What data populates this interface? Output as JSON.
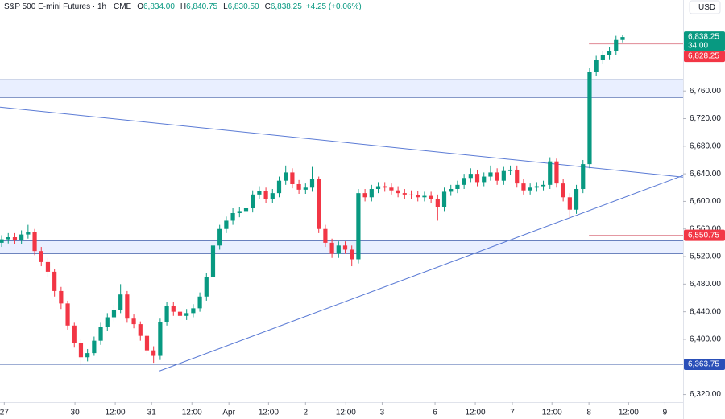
{
  "chart_data": {
    "type": "candlestick",
    "title": "S&P 500 E-mini Futures · 1h · CME",
    "ohlc": [
      {
        "label": "O",
        "value": "6,834.00"
      },
      {
        "label": "H",
        "value": "6,840.75"
      },
      {
        "label": "L",
        "value": "6,830.50"
      },
      {
        "label": "C",
        "value": "6,838.25"
      }
    ],
    "change": "+4.25 (+0.06%)",
    "currency": "USD",
    "countdown": "34:00",
    "colors": {
      "up": "#089981",
      "down": "#f23645"
    },
    "open": [
      6540,
      6545,
      6548,
      6544,
      6552,
      6556,
      6528,
      6512,
      6498,
      6470,
      6452,
      6420,
      6395,
      6374,
      6380,
      6398,
      6418,
      6432,
      6443,
      6465,
      6430,
      6422,
      6405,
      6384,
      6376,
      6425,
      6448,
      6440,
      6434,
      6438,
      6445,
      6462,
      6490,
      6536,
      6560,
      6572,
      6583,
      6586,
      6590,
      6610,
      6615,
      6604,
      6612,
      6630,
      6642,
      6625,
      6617,
      6620,
      6632,
      6560,
      6540,
      6524,
      6536,
      6530,
      6516,
      6612,
      6606,
      6618,
      6622,
      6620,
      6616,
      6612,
      6610,
      6609,
      6606,
      6608,
      6604,
      6592,
      6614,
      6618,
      6624,
      6634,
      6640,
      6628,
      6636,
      6642,
      6630,
      6644,
      6646,
      6626,
      6616,
      6620,
      6622,
      6624,
      6658,
      6626,
      6606,
      6588,
      6618,
      6654,
      6788,
      6805,
      6812,
      6818,
      6834
    ],
    "high": [
      6551,
      6554,
      6554,
      6558,
      6566,
      6560,
      6534,
      6518,
      6502,
      6476,
      6456,
      6424,
      6400,
      6386,
      6404,
      6424,
      6438,
      6450,
      6480,
      6470,
      6436,
      6426,
      6410,
      6390,
      6430,
      6454,
      6454,
      6446,
      6444,
      6451,
      6468,
      6496,
      6542,
      6566,
      6578,
      6590,
      6592,
      6596,
      6616,
      6622,
      6620,
      6618,
      6636,
      6652,
      6648,
      6631,
      6626,
      6650,
      6636,
      6566,
      6546,
      6542,
      6542,
      6536,
      6618,
      6618,
      6624,
      6628,
      6628,
      6626,
      6622,
      6618,
      6616,
      6615,
      6614,
      6614,
      6610,
      6620,
      6624,
      6630,
      6640,
      6648,
      6646,
      6642,
      6652,
      6648,
      6650,
      6652,
      6652,
      6632,
      6626,
      6628,
      6630,
      6664,
      6662,
      6632,
      6612,
      6624,
      6660,
      6794,
      6811,
      6818,
      6824,
      6840,
      6840.75
    ],
    "low": [
      6534,
      6539,
      6538,
      6538,
      6546,
      6522,
      6506,
      6490,
      6462,
      6444,
      6414,
      6388,
      6362,
      6368,
      6376,
      6392,
      6412,
      6426,
      6438,
      6424,
      6416,
      6398,
      6378,
      6366,
      6370,
      6420,
      6434,
      6428,
      6428,
      6432,
      6440,
      6456,
      6484,
      6530,
      6554,
      6566,
      6577,
      6580,
      6584,
      6604,
      6598,
      6598,
      6606,
      6624,
      6619,
      6611,
      6611,
      6614,
      6554,
      6534,
      6518,
      6518,
      6524,
      6506,
      6510,
      6600,
      6600,
      6612,
      6614,
      6610,
      6606,
      6604,
      6603,
      6600,
      6600,
      6598,
      6572,
      6586,
      6608,
      6612,
      6618,
      6628,
      6622,
      6622,
      6630,
      6624,
      6624,
      6638,
      6620,
      6610,
      6610,
      6614,
      6616,
      6618,
      6620,
      6600,
      6576,
      6582,
      6612,
      6648,
      6782,
      6799,
      6806,
      6812,
      6830.5
    ],
    "close": [
      6545,
      6548,
      6544,
      6552,
      6556,
      6528,
      6512,
      6498,
      6470,
      6452,
      6420,
      6395,
      6374,
      6380,
      6398,
      6418,
      6432,
      6443,
      6465,
      6430,
      6422,
      6405,
      6384,
      6376,
      6425,
      6448,
      6440,
      6434,
      6438,
      6445,
      6462,
      6490,
      6536,
      6560,
      6572,
      6583,
      6586,
      6590,
      6610,
      6615,
      6604,
      6612,
      6630,
      6642,
      6625,
      6617,
      6620,
      6632,
      6560,
      6540,
      6524,
      6536,
      6530,
      6516,
      6612,
      6606,
      6618,
      6622,
      6620,
      6616,
      6612,
      6610,
      6609,
      6606,
      6608,
      6604,
      6592,
      6614,
      6618,
      6624,
      6634,
      6640,
      6628,
      6636,
      6642,
      6630,
      6644,
      6646,
      6626,
      6616,
      6620,
      6622,
      6624,
      6658,
      6626,
      6606,
      6588,
      6618,
      6654,
      6788,
      6805,
      6812,
      6818,
      6834,
      6838.25
    ],
    "xlim": [
      -0.25,
      103.15
    ],
    "xticks": [
      {
        "value": 0.4,
        "label": "27"
      },
      {
        "value": 11.1,
        "label": "30"
      },
      {
        "value": 17.2,
        "label": "12:00"
      },
      {
        "value": 22.7,
        "label": "31"
      },
      {
        "value": 28.8,
        "label": "12:00"
      },
      {
        "value": 34.4,
        "label": "Apr"
      },
      {
        "value": 40.4,
        "label": "12:00"
      },
      {
        "value": 46,
        "label": "2"
      },
      {
        "value": 52.1,
        "label": "12:00"
      },
      {
        "value": 57.6,
        "label": "3"
      },
      {
        "value": 65.6,
        "label": "6"
      },
      {
        "value": 71.7,
        "label": "12:00"
      },
      {
        "value": 77.3,
        "label": "7"
      },
      {
        "value": 83.3,
        "label": "12:00"
      },
      {
        "value": 88.9,
        "label": "8"
      },
      {
        "value": 94.9,
        "label": "12:00"
      },
      {
        "value": 100.4,
        "label": "9"
      }
    ],
    "ylim": [
      6309,
      6892
    ],
    "yticks": [
      {
        "value": 6320,
        "label": "6,320.00"
      },
      {
        "value": 6400,
        "label": "6,400.00"
      },
      {
        "value": 6440,
        "label": "6,440.00"
      },
      {
        "value": 6480,
        "label": "6,480.00"
      },
      {
        "value": 6520,
        "label": "6,520.00"
      },
      {
        "value": 6560,
        "label": "6,560.00"
      },
      {
        "value": 6600,
        "label": "6,600.00"
      },
      {
        "value": 6640,
        "label": "6,640.00"
      },
      {
        "value": 6680,
        "label": "6,680.00"
      },
      {
        "value": 6720,
        "label": "6,720.00"
      },
      {
        "value": 6760,
        "label": "6,760.00"
      }
    ],
    "zones": [
      [
        6750.7,
        6776.3
      ],
      [
        6524.4,
        6543.1
      ]
    ],
    "trendlines": [
      {
        "x": [
          -0.25,
          103.15
        ],
        "y": [
          6736.7,
          6635.2
        ]
      },
      {
        "x": [
          23.9,
          103.15
        ],
        "y": [
          6354.2,
          6637.6
        ]
      }
    ],
    "levels": [
      6363.75
    ],
    "rays": [
      {
        "from": 88.9,
        "value": 6828.25
      },
      {
        "from": 88.9,
        "value": 6550.75
      }
    ],
    "price_labels": [
      {
        "value": 6838.25,
        "label": "6,838.25",
        "color": "#089981"
      },
      {
        "value": 6828.25,
        "label": "6,828.25",
        "color": "#f23645"
      },
      {
        "value": 6550.75,
        "label": "6,550.75",
        "color": "#f23645"
      },
      {
        "value": 6363.75,
        "label": "6,363.75",
        "color": "#2a4fb8"
      }
    ]
  }
}
